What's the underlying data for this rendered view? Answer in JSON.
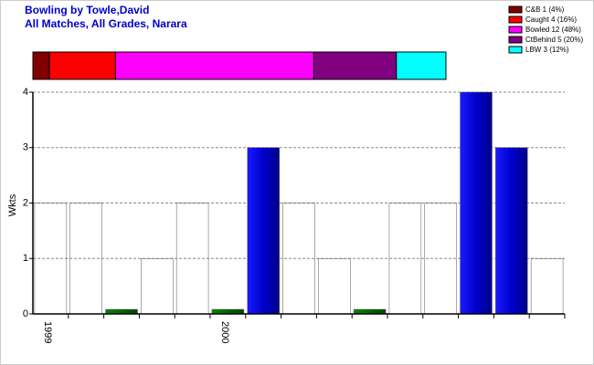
{
  "chart_data": {
    "type": "bar",
    "title": "Bowling by Towle,David",
    "subtitle": "All Matches, All Grades, Narara",
    "y_label": "Wkts",
    "categories": [
      "1999",
      null,
      null,
      null,
      null,
      "2000",
      null,
      null,
      null,
      null,
      null,
      null,
      null,
      null,
      null
    ],
    "values": [
      2,
      2,
      0,
      1,
      2,
      0,
      3,
      2,
      1,
      0,
      2,
      2,
      4,
      3,
      1
    ],
    "colors": [
      "#999999",
      "#999999",
      "#006600",
      "#999999",
      "#999999",
      "#006600",
      "#0000cc",
      "#999999",
      "#999999",
      "#006600",
      "#999999",
      "#999999",
      "#0000cc",
      "#0000cc",
      "#999999"
    ],
    "ylim": [
      0,
      4
    ],
    "yticks": [
      0,
      1,
      2,
      3,
      4
    ],
    "grid": true,
    "breakdown": [
      {
        "name": "C&B 1 (4%)",
        "color": "#800000",
        "value": 1
      },
      {
        "name": "Caught 4 (16%)",
        "color": "#ff0000",
        "value": 4
      },
      {
        "name": "Bowled 12 (48%)",
        "color": "#ff00ff",
        "value": 12
      },
      {
        "name": "CtBehind 5 (20%)",
        "color": "#800080",
        "value": 5
      },
      {
        "name": "LBW 3 (12%)",
        "color": "#00ffff",
        "value": 3
      }
    ]
  }
}
